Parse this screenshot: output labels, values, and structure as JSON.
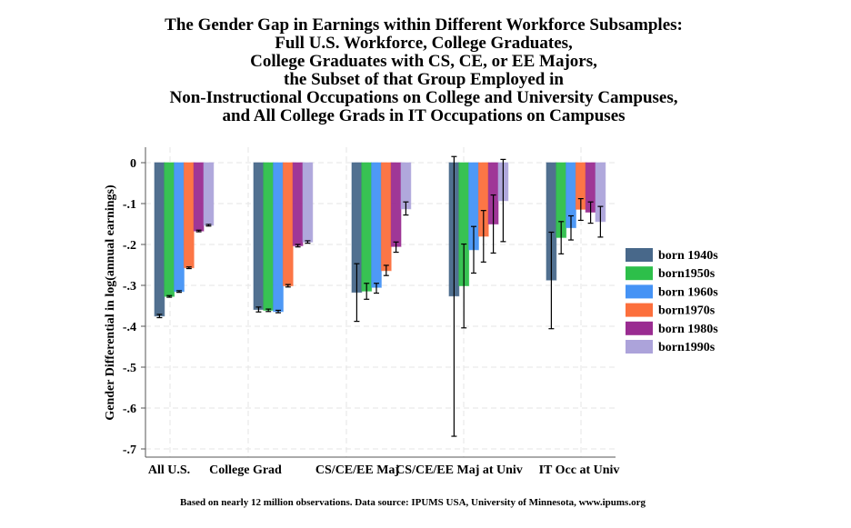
{
  "chart_data": {
    "type": "bar",
    "title": [
      "The Gender Gap in Earnings within Different Workforce Subsamples:",
      "Full U.S. Workforce, College Graduates,",
      "College Graduates with CS, CE, or EE Majors,",
      "the Subset of that Group Employed in",
      "Non-Instructional Occupations on College and University Campuses,",
      "and All College Grads in IT Occupations on Campuses"
    ],
    "ylabel": "Gender Differential in log(annual earnings)",
    "xlabel": "",
    "note": "Based on nearly 12 million observations.  Data source:  IPUMS USA, University of Minnesota, www.ipums.org",
    "ylim": [
      -0.7,
      0
    ],
    "yticks": [
      0,
      -0.1,
      -0.2,
      -0.3,
      -0.4,
      -0.5,
      -0.6,
      -0.7
    ],
    "ytick_labels": [
      "0",
      "-.1",
      "-.2",
      "-.3",
      "-.4",
      "-.5",
      "-.6",
      "-.7"
    ],
    "grid": true,
    "legend_position": "right",
    "categories": [
      "All U.S.",
      "College Grad",
      "CS/CE/EE Maj",
      "CS/CE/EE Maj at Univ",
      "IT Occ at Univ"
    ],
    "series": [
      {
        "name": "born 1940s",
        "color": "#48688a",
        "values": [
          -0.375,
          -0.359,
          -0.317,
          -0.326,
          -0.287
        ],
        "ci": [
          [
            -0.379,
            -0.371
          ],
          [
            -0.365,
            -0.353
          ],
          [
            -0.388,
            -0.247
          ],
          [
            -0.669,
            0.015
          ],
          [
            -0.406,
            -0.17
          ]
        ]
      },
      {
        "name": "born1950s",
        "color": "#2dbf4a",
        "values": [
          -0.327,
          -0.361,
          -0.314,
          -0.301,
          -0.183
        ],
        "ci": [
          [
            -0.329,
            -0.325
          ],
          [
            -0.364,
            -0.358
          ],
          [
            -0.334,
            -0.295
          ],
          [
            -0.404,
            -0.199
          ],
          [
            -0.223,
            -0.144
          ]
        ]
      },
      {
        "name": "born 1960s",
        "color": "#4593f5",
        "values": [
          -0.315,
          -0.364,
          -0.305,
          -0.213,
          -0.159
        ],
        "ci": [
          [
            -0.317,
            -0.313
          ],
          [
            -0.367,
            -0.361
          ],
          [
            -0.319,
            -0.295
          ],
          [
            -0.27,
            -0.156
          ],
          [
            -0.189,
            -0.13
          ]
        ]
      },
      {
        "name": "born1970s",
        "color": "#fc6f3c",
        "values": [
          -0.257,
          -0.301,
          -0.264,
          -0.18,
          -0.114
        ],
        "ci": [
          [
            -0.259,
            -0.255
          ],
          [
            -0.304,
            -0.298
          ],
          [
            -0.276,
            -0.251
          ],
          [
            -0.243,
            -0.117
          ],
          [
            -0.141,
            -0.088
          ]
        ]
      },
      {
        "name": "born 1980s",
        "color": "#9a2c91",
        "values": [
          -0.167,
          -0.203,
          -0.205,
          -0.15,
          -0.121
        ],
        "ci": [
          [
            -0.169,
            -0.165
          ],
          [
            -0.206,
            -0.2
          ],
          [
            -0.219,
            -0.194
          ],
          [
            -0.221,
            -0.079
          ],
          [
            -0.148,
            -0.096
          ]
        ]
      },
      {
        "name": "born1990s",
        "color": "#aca3da",
        "values": [
          -0.153,
          -0.194,
          -0.113,
          -0.093,
          -0.144
        ],
        "ci": [
          [
            -0.155,
            -0.151
          ],
          [
            -0.197,
            -0.191
          ],
          [
            -0.128,
            -0.096
          ],
          [
            -0.193,
            0.008
          ],
          [
            -0.182,
            -0.107
          ]
        ]
      }
    ]
  }
}
